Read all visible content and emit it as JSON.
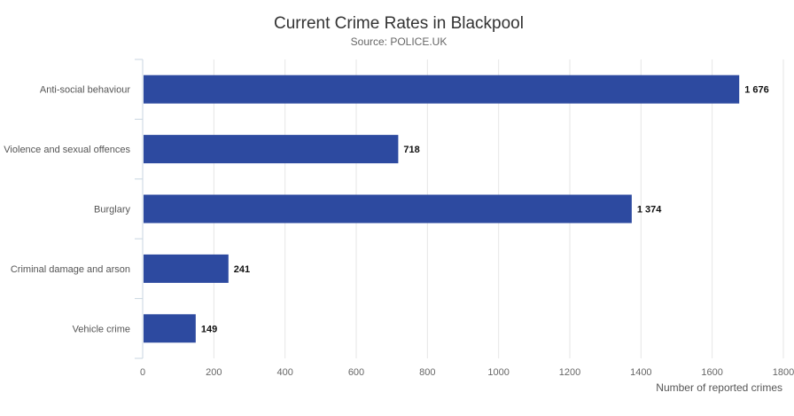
{
  "chart_data": {
    "type": "bar",
    "orientation": "horizontal",
    "title": "Current Crime Rates in Blackpool",
    "subtitle": "Source: POLICE.UK",
    "xlabel": "Number of reported crimes",
    "ylabel": "",
    "categories": [
      "Anti-social behaviour",
      "Violence and sexual offences",
      "Burglary",
      "Criminal damage and arson",
      "Vehicle crime"
    ],
    "values": [
      1676,
      718,
      1374,
      241,
      149
    ],
    "value_labels": [
      "1 676",
      "718",
      "1 374",
      "241",
      "149"
    ],
    "xlim": [
      0,
      1800
    ],
    "ticks": [
      0,
      200,
      400,
      600,
      800,
      1000,
      1200,
      1400,
      1600,
      1800
    ],
    "bar_color": "#2d4aa0",
    "grid": true,
    "legend": "none"
  }
}
